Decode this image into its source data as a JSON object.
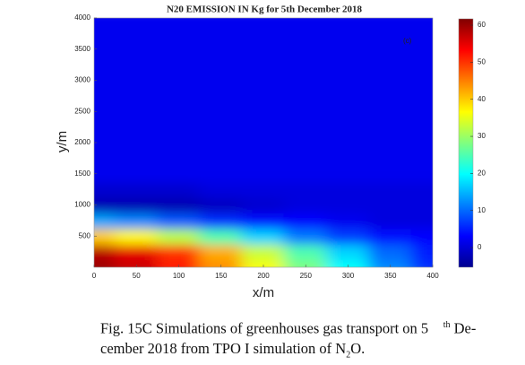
{
  "chart_data": {
    "type": "heatmap",
    "title": "N20 EMISSION IN Kg for 5th December 2018",
    "annotation": "(c)",
    "xlabel": "x/m",
    "ylabel": "y/m",
    "x": [
      0,
      50,
      100,
      150,
      200,
      250,
      300,
      350,
      400
    ],
    "y": [
      0,
      250,
      500,
      750,
      1000,
      1250,
      1500,
      1750,
      2000,
      2250,
      2500,
      2750,
      3000,
      3250,
      3500,
      3750,
      4000
    ],
    "z": [
      [
        60,
        57,
        52,
        44,
        36,
        28,
        20,
        12,
        6
      ],
      [
        58,
        55,
        50,
        42,
        33,
        25,
        17,
        10,
        5
      ],
      [
        40,
        37,
        32,
        25,
        17,
        11,
        7,
        4,
        3
      ],
      [
        14,
        12,
        9,
        6,
        4,
        3,
        2,
        1,
        1
      ],
      [
        -2,
        -2,
        -2,
        -1,
        0,
        1,
        1,
        1,
        1
      ],
      [
        0,
        0,
        0,
        1,
        1,
        1,
        1,
        1,
        1
      ],
      [
        2,
        2,
        2,
        2,
        2,
        2,
        2,
        2,
        2
      ],
      [
        2,
        2,
        2,
        2,
        2,
        2,
        2,
        2,
        2
      ],
      [
        2,
        2,
        2,
        2,
        2,
        2,
        2,
        2,
        2
      ],
      [
        2,
        2,
        2,
        2,
        2,
        2,
        2,
        2,
        2
      ],
      [
        2,
        2,
        2,
        2,
        2,
        2,
        2,
        2,
        2
      ],
      [
        2,
        2,
        2,
        2,
        2,
        2,
        2,
        2,
        2
      ],
      [
        2,
        2,
        2,
        2,
        2,
        2,
        2,
        2,
        2
      ],
      [
        2,
        2,
        2,
        2,
        2,
        2,
        2,
        2,
        2
      ],
      [
        2,
        2,
        2,
        2,
        2,
        2,
        2,
        2,
        2
      ],
      [
        2,
        2,
        2,
        2,
        2,
        2,
        2,
        2,
        2
      ],
      [
        2,
        2,
        2,
        2,
        2,
        2,
        2,
        2,
        2
      ]
    ],
    "xlim": [
      0,
      400
    ],
    "xticks": [
      0,
      50,
      100,
      150,
      200,
      250,
      300,
      350,
      400
    ],
    "ylim": [
      0,
      4000
    ],
    "yticks": [
      500,
      1000,
      1500,
      2000,
      2500,
      3000,
      3500,
      4000
    ],
    "colorbar": {
      "lim": [
        -5.3,
        61.7
      ],
      "ticks": [
        0,
        10,
        20,
        30,
        40,
        50,
        60
      ],
      "colormap": "jet"
    },
    "caption": [
      "Fig. 15C Simulations of greenhouses gas transport on 5",
      "th",
      " De-",
      "cember 2018 from TPO I simulation of N",
      "2",
      "O."
    ]
  }
}
